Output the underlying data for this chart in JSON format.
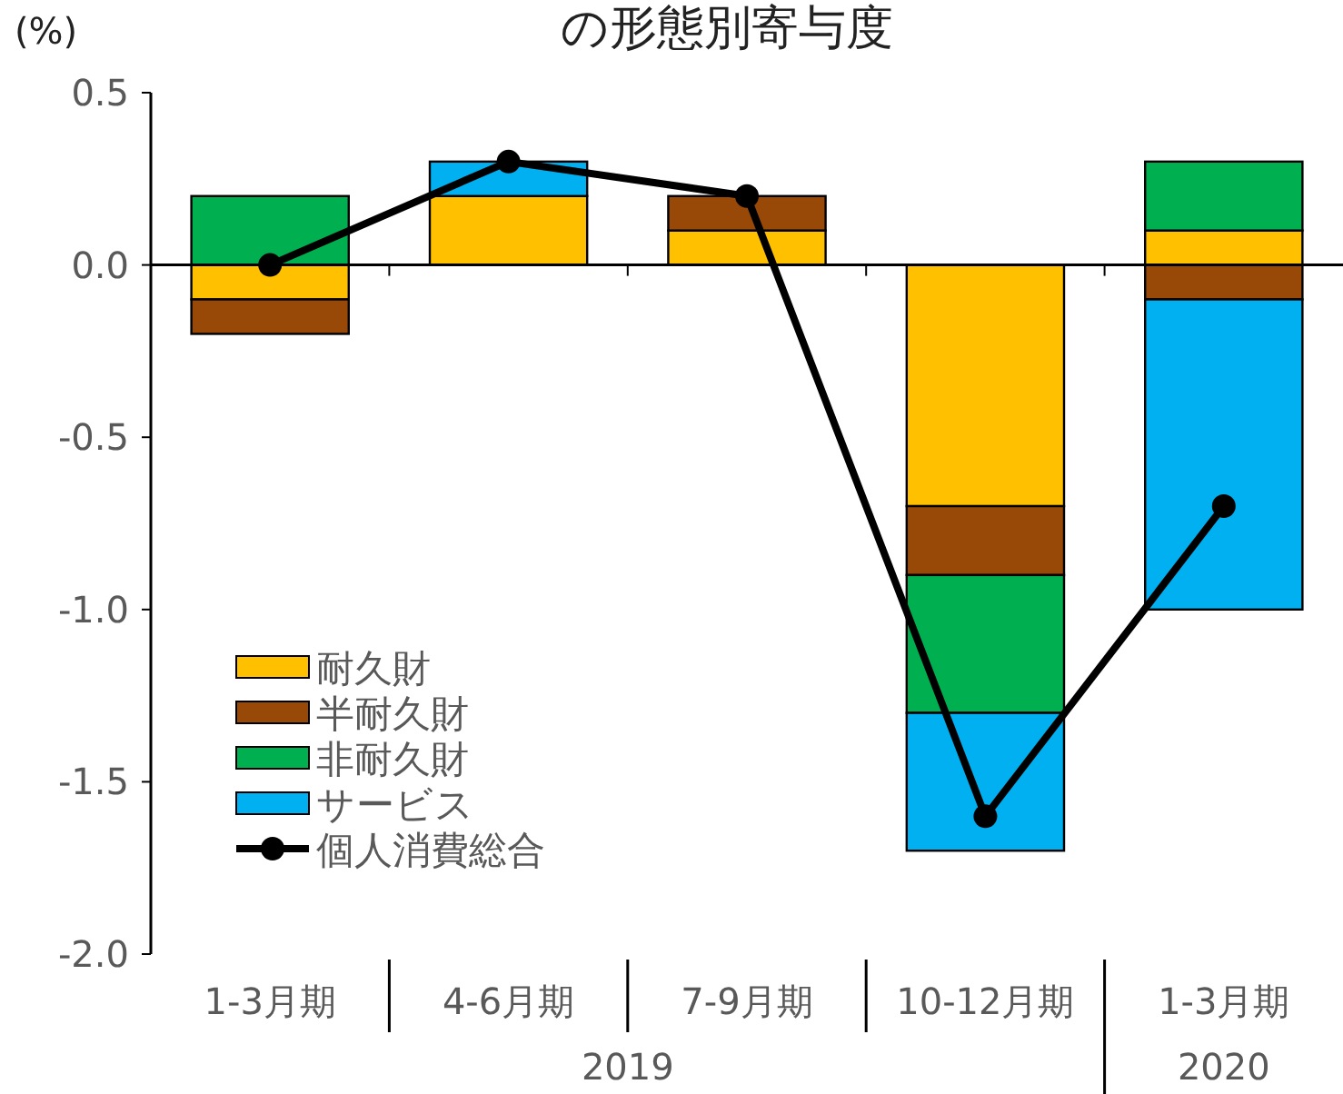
{
  "chart_data": {
    "type": "bar",
    "title": "の形態別寄与度",
    "ylabel": "(%)",
    "stacked": true,
    "legend": "bottom left",
    "marker": "circle",
    "categories": [
      "1-3月期",
      "4-6月期",
      "7-9月期",
      "10-12月期",
      "1-3月期"
    ],
    "series": [
      {
        "name": "耐久財",
        "color": "#ffc000",
        "values": [
          -0.1,
          0.2,
          0.1,
          -0.7,
          0.1
        ]
      },
      {
        "name": "半耐久財",
        "color": "#984807",
        "values": [
          -0.1,
          0,
          0.1,
          -0.2,
          -0.1
        ]
      },
      {
        "name": "非耐久財",
        "color": "#00b050",
        "values": [
          0.2,
          0,
          0,
          -0.4,
          0.2
        ]
      },
      {
        "name": "サービス",
        "color": "#00b0f0",
        "values": [
          0,
          0.1,
          0,
          -0.4,
          -0.9
        ]
      },
      {
        "name": "個人消費総合",
        "type": "line",
        "color": "#000000",
        "values": [
          0,
          0.3,
          0.2,
          -1.6,
          -0.7
        ]
      }
    ],
    "ylim": [
      -2.0,
      0.5
    ],
    "yticks": [
      {
        "value": 0.5,
        "label": "0.5"
      },
      {
        "value": 0,
        "label": "0.0"
      },
      {
        "value": -0.5,
        "label": "-0.5"
      },
      {
        "value": -1,
        "label": "-1.0"
      },
      {
        "value": -1.5,
        "label": "-1.5"
      },
      {
        "value": -2,
        "label": "-2.0"
      }
    ],
    "annotations": [
      "2019",
      "2020"
    ]
  }
}
